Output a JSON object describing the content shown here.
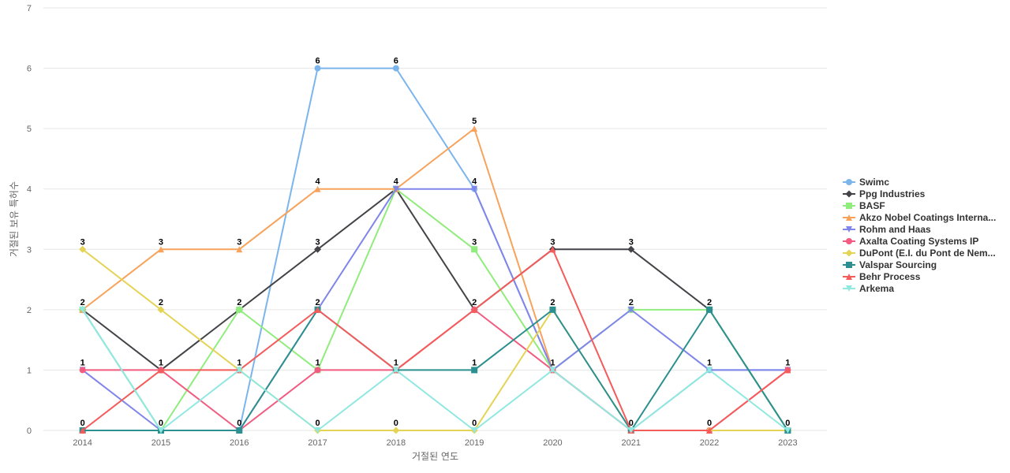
{
  "chart_data": {
    "type": "line",
    "title": "",
    "xlabel": "거절된 연도",
    "ylabel": "거절된 보유 특허수",
    "categories": [
      "2014",
      "2015",
      "2016",
      "2017",
      "2018",
      "2019",
      "2020",
      "2021",
      "2022",
      "2023"
    ],
    "y_ticks": [
      "0",
      "1",
      "2",
      "3",
      "4",
      "5",
      "6",
      "7"
    ],
    "ylim": [
      0,
      7
    ],
    "grid": true,
    "legend_position": "right",
    "series": [
      {
        "name": "Swimc",
        "color": "#7cb5ec",
        "marker": "circle",
        "values": [
          2,
          0,
          0,
          6,
          6,
          4,
          1,
          0,
          1,
          1
        ]
      },
      {
        "name": "Ppg Industries",
        "color": "#434348",
        "marker": "diamond",
        "values": [
          2,
          1,
          2,
          3,
          4,
          2,
          3,
          3,
          2,
          0
        ]
      },
      {
        "name": "BASF",
        "color": "#90ed7d",
        "marker": "square",
        "values": [
          2,
          0,
          2,
          1,
          4,
          3,
          1,
          2,
          2,
          0
        ]
      },
      {
        "name": "Akzo Nobel Coatings Interna...",
        "color": "#f7a35c",
        "marker": "triangle",
        "values": [
          2,
          3,
          3,
          4,
          4,
          5,
          1,
          0,
          0,
          0
        ]
      },
      {
        "name": "Rohm and Haas",
        "color": "#8085e9",
        "marker": "triangle-down",
        "values": [
          1,
          0,
          0,
          2,
          4,
          4,
          1,
          2,
          1,
          1
        ]
      },
      {
        "name": "Axalta Coating Systems IP",
        "color": "#f15c80",
        "marker": "circle",
        "values": [
          1,
          1,
          0,
          1,
          1,
          2,
          1,
          0,
          0,
          1
        ]
      },
      {
        "name": "DuPont (E.I. du Pont de Nem...",
        "color": "#e4d354",
        "marker": "diamond",
        "values": [
          3,
          2,
          1,
          0,
          0,
          0,
          2,
          0,
          0,
          0
        ]
      },
      {
        "name": "Valspar Sourcing",
        "color": "#2b908f",
        "marker": "square",
        "values": [
          0,
          0,
          0,
          2,
          1,
          1,
          2,
          0,
          2,
          0
        ]
      },
      {
        "name": "Behr Process",
        "color": "#f45b5b",
        "marker": "triangle",
        "values": [
          0,
          1,
          1,
          2,
          1,
          2,
          3,
          0,
          0,
          1
        ]
      },
      {
        "name": "Arkema",
        "color": "#91e8e1",
        "marker": "triangle-down",
        "values": [
          2,
          0,
          1,
          0,
          1,
          0,
          1,
          0,
          1,
          0
        ]
      }
    ],
    "data_labels": [
      {
        "x": "2014",
        "values": [
          "3",
          "2",
          "1",
          "0"
        ]
      },
      {
        "x": "2015",
        "values": [
          "3",
          "2",
          "1",
          "0"
        ]
      },
      {
        "x": "2016",
        "values": [
          "3",
          "2",
          "1",
          "0"
        ]
      },
      {
        "x": "2017",
        "values": [
          "6",
          "4",
          "3",
          "2",
          "1",
          "0"
        ]
      },
      {
        "x": "2018",
        "values": [
          "6",
          "4",
          "1",
          "0"
        ]
      },
      {
        "x": "2019",
        "values": [
          "5",
          "4",
          "3",
          "2",
          "1",
          "0"
        ]
      },
      {
        "x": "2020",
        "values": [
          "3",
          "2",
          "1"
        ]
      },
      {
        "x": "2021",
        "values": [
          "3",
          "2",
          "0"
        ]
      },
      {
        "x": "2022",
        "values": [
          "2",
          "1",
          "0"
        ]
      },
      {
        "x": "2023",
        "values": [
          "1",
          "0"
        ]
      }
    ]
  }
}
